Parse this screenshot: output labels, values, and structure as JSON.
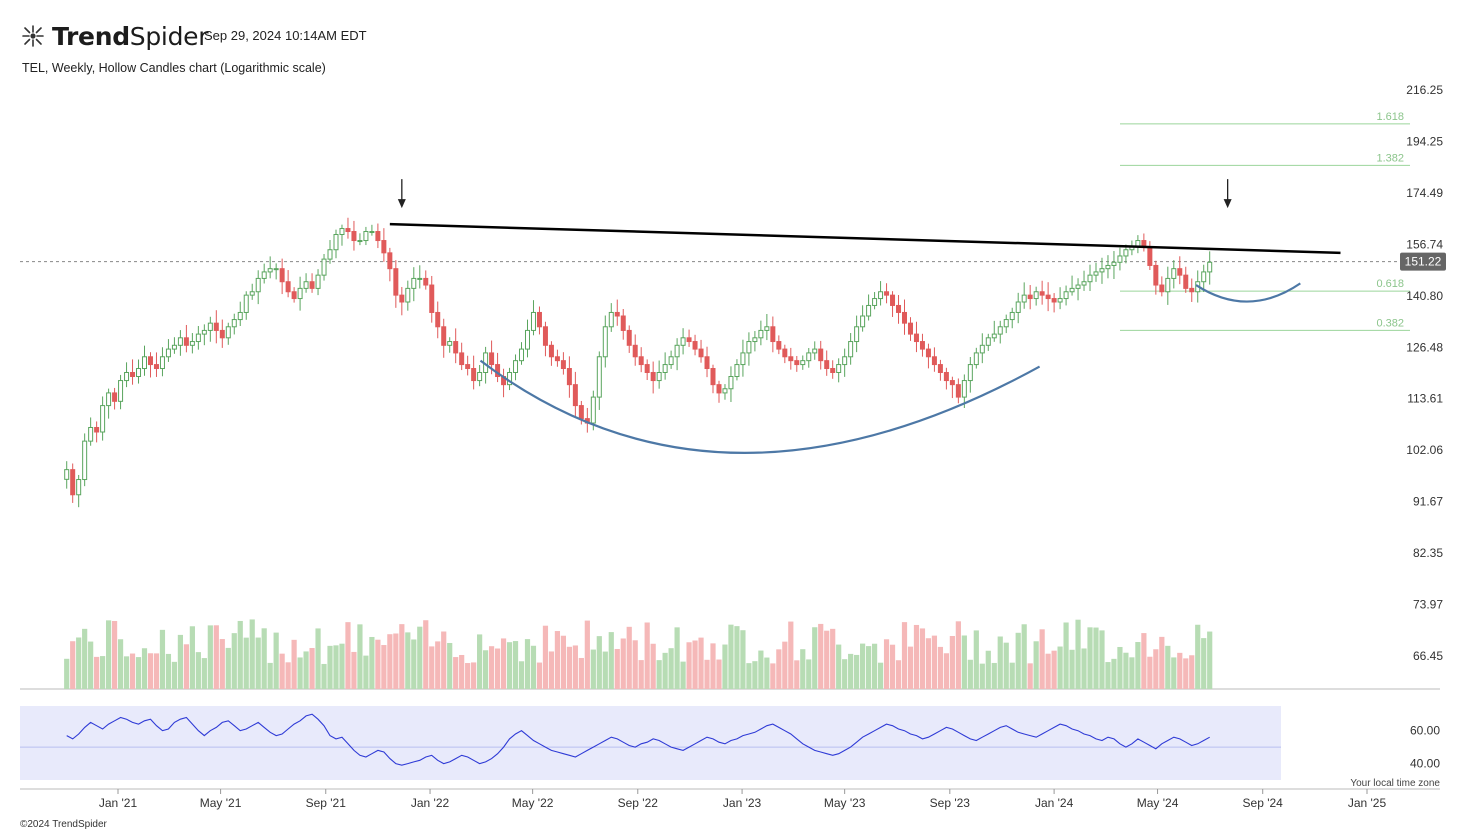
{
  "header": {
    "brand": "TrendSpider",
    "timestamp": "Sep 29, 2024 10:14AM EDT",
    "subtitle": "TEL, Weekly, Hollow Candles chart (Logarithmic scale)"
  },
  "footer": {
    "copyright": "©2024 TrendSpider",
    "timezone_note": "Your local time zone"
  },
  "colors": {
    "up": "#5aa55e",
    "down": "#e05a5a",
    "vol_up": "#b7dcb4",
    "vol_down": "#f5b8b8",
    "rsi_band": "#e8eafb",
    "rsi_line": "#2f3bd6",
    "trendline": "#000000",
    "curve": "#4d78a6",
    "fib": "#9bd59b",
    "last_price_bg": "#666666"
  },
  "chart_data": {
    "type": "candlestick",
    "scale": "log",
    "symbol": "TEL",
    "interval": "Weekly",
    "price_axis_ticks": [
      "216.25",
      "194.25",
      "174.49",
      "156.74",
      "140.80",
      "126.48",
      "113.61",
      "102.06",
      "91.67",
      "82.35",
      "73.97",
      "66.45"
    ],
    "volume_axis_ticks": [
      "73.97",
      "66.45"
    ],
    "rsi_axis_ticks": [
      "60.00",
      "40.00"
    ],
    "x_axis_ticks": [
      "Jan '21",
      "May '21",
      "Sep '21",
      "Jan '22",
      "May '22",
      "Sep '22",
      "Jan '23",
      "May '23",
      "Sep '23",
      "Jan '24",
      "May '24",
      "Sep '24",
      "Jan '25"
    ],
    "last_price": "151.22",
    "fib_levels": [
      {
        "label": "1.618",
        "price": 201.5
      },
      {
        "label": "1.382",
        "price": 184.8
      },
      {
        "label": "0.618",
        "price": 142.2
      },
      {
        "label": "0.382",
        "price": 131.0
      }
    ],
    "trendline": {
      "start": {
        "date": "2021-11-15",
        "price": 163.5
      },
      "end": {
        "date": "2024-12-01",
        "price": 154.0
      }
    },
    "markers": [
      {
        "date": "2021-11-29",
        "type": "down-arrow"
      },
      {
        "date": "2024-07-22",
        "type": "down-arrow"
      }
    ],
    "annotations": [
      {
        "type": "arc",
        "name": "cup",
        "from_date": "2022-03-01",
        "to_date": "2023-12-15",
        "low_price": 101.0
      },
      {
        "type": "arc",
        "name": "handle",
        "from_date": "2024-06-15",
        "to_date": "2024-10-15",
        "low_price": 139.0
      }
    ],
    "weekly_closes": [
      [
        98,
        93,
        96,
        104,
        107,
        106,
        112,
        115,
        113,
        118,
        120,
        119,
        121,
        124,
        122,
        121,
        124,
        126,
        127,
        129,
        127,
        128,
        130,
        131,
        133,
        131,
        129,
        132,
        134,
        136,
        141,
        142,
        146,
        148,
        149,
        149,
        145,
        142,
        140,
        143,
        145,
        143,
        147,
        152,
        155,
        160,
        162,
        161,
        158,
        158,
        161,
        161,
        158,
        154,
        149,
        141,
        139,
        143,
        146,
        146,
        144,
        136,
        132,
        127,
        128,
        125,
        122,
        121,
        118,
        120,
        125,
        122,
        119,
        117,
        120,
        123,
        126,
        131,
        136,
        132,
        127,
        124,
        123,
        121,
        117,
        112,
        109,
        108,
        114,
        124,
        132,
        136,
        135,
        131,
        127,
        124,
        122,
        120,
        118,
        120,
        122,
        124,
        127,
        129,
        128,
        126,
        124,
        121,
        117,
        115,
        116,
        119,
        122,
        125,
        128,
        129,
        131,
        132,
        128,
        126,
        124,
        123,
        122,
        123,
        125,
        126,
        123,
        121,
        120,
        122,
        124,
        128,
        132,
        135,
        138,
        140,
        142,
        141,
        138,
        136,
        133,
        130,
        128,
        126,
        124,
        122,
        120,
        118,
        117,
        114,
        118,
        122,
        125,
        127,
        129,
        130,
        132,
        134,
        136,
        139,
        141,
        140,
        142,
        141,
        140,
        139,
        140,
        142,
        143,
        144,
        145,
        147,
        148,
        149,
        150,
        151,
        153,
        155,
        156,
        158,
        156,
        150,
        144,
        142,
        146,
        149,
        147,
        143,
        142,
        145,
        148,
        151
      ]
    ],
    "rsi_values": [
      [
        57,
        55,
        58,
        62,
        65,
        63,
        61,
        64,
        66,
        68,
        67,
        65,
        64,
        66,
        67,
        63,
        60,
        61,
        65,
        67,
        68,
        64,
        60,
        57,
        60,
        62,
        65,
        66,
        63,
        60,
        61,
        63,
        65,
        62,
        59,
        57,
        58,
        61,
        64,
        66,
        69,
        70,
        67,
        63,
        57,
        55,
        56,
        52,
        48,
        45,
        44,
        46,
        48,
        47,
        43,
        40,
        39,
        40,
        41,
        42,
        44,
        45,
        42,
        40,
        41,
        43,
        45,
        44,
        42,
        40,
        41,
        43,
        46,
        50,
        55,
        58,
        60,
        57,
        54,
        52,
        50,
        48,
        47,
        46,
        45,
        44,
        46,
        48,
        50,
        52,
        54,
        56,
        55,
        53,
        51,
        50,
        52,
        53,
        55,
        54,
        52,
        50,
        49,
        48,
        50,
        52,
        54,
        56,
        55,
        53,
        52,
        54,
        55,
        57,
        58,
        59,
        61,
        63,
        64,
        62,
        60,
        58,
        55,
        52,
        50,
        48,
        47,
        46,
        45,
        46,
        48,
        50,
        53,
        56,
        58,
        60,
        62,
        64,
        63,
        61,
        60,
        58,
        57,
        55,
        56,
        58,
        60,
        62,
        61,
        59,
        57,
        55,
        54,
        56,
        58,
        60,
        62,
        63,
        61,
        59,
        58,
        57,
        56,
        58,
        60,
        62,
        64,
        63,
        61,
        60,
        58,
        57,
        55,
        54,
        56,
        55,
        52,
        50,
        52,
        55,
        53,
        51,
        49,
        52,
        54,
        56,
        55,
        53,
        51,
        52,
        54,
        56
      ]
    ]
  }
}
